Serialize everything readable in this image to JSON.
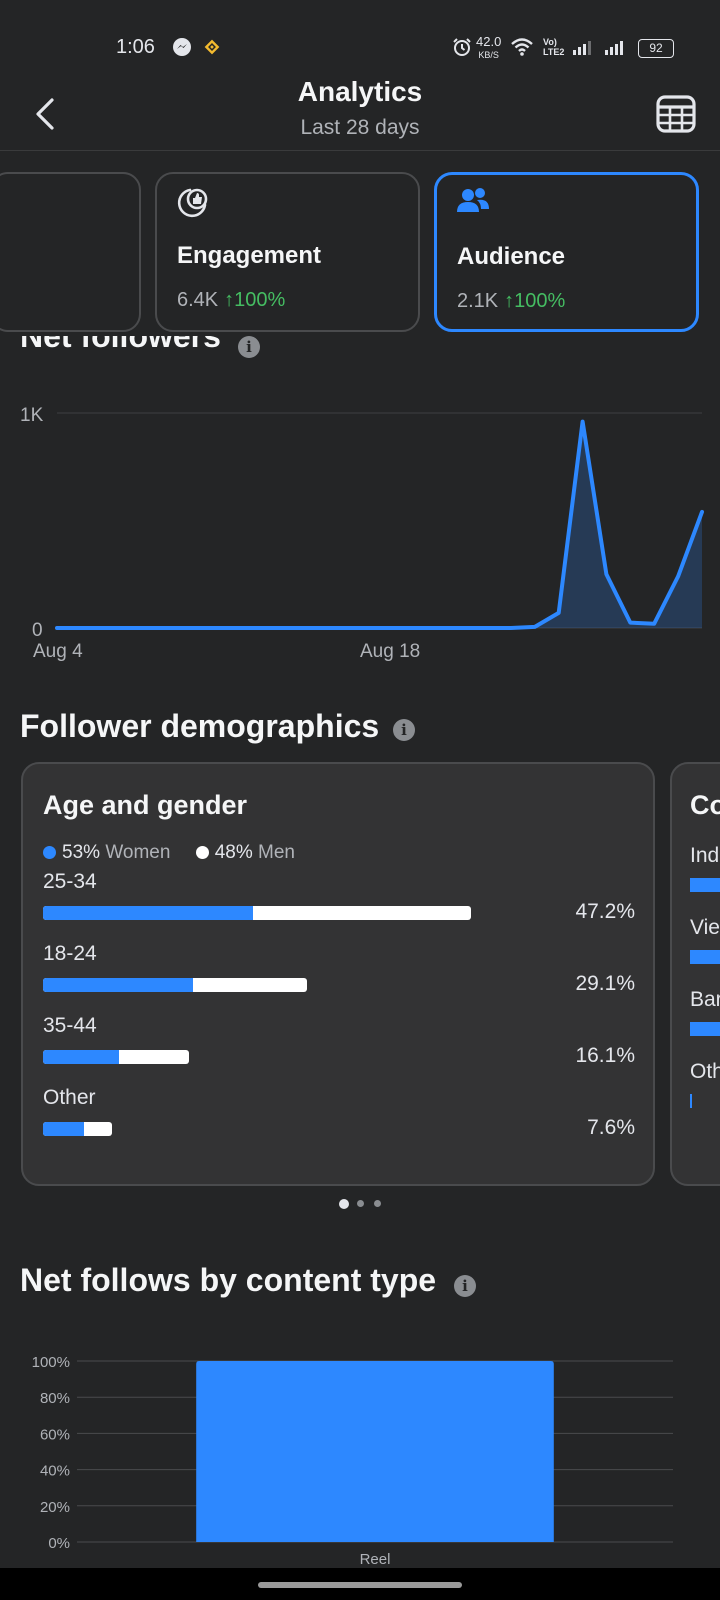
{
  "status_bar": {
    "time": "1:06",
    "net_speed": "42.0",
    "net_unit": "KB/S",
    "volte1": "Vo)",
    "volte2": "LTE2",
    "battery": "92",
    "icons": [
      "messenger-icon",
      "binance-icon",
      "alarm-icon",
      "wifi-icon",
      "signal-icon",
      "battery-icon"
    ]
  },
  "header": {
    "title": "Analytics",
    "subtitle": "Last 28 days"
  },
  "cards": [
    {
      "title": "Engagement",
      "value": "6.4K",
      "change": "↑100%",
      "icon": "engagement-icon"
    },
    {
      "title": "Audience",
      "value": "2.1K",
      "change": "↑100%",
      "icon": "audience-icon",
      "selected": true
    }
  ],
  "net_followers": {
    "title": "Net followers",
    "chart_data": {
      "type": "area",
      "x_tick_labels": [
        "Aug 4",
        "Aug 18"
      ],
      "y_tick_labels": [
        "1K",
        "0"
      ],
      "ylim": [
        0,
        1000
      ],
      "grid": true,
      "series": [
        {
          "color": "#2d88ff",
          "values": [
            0,
            0,
            0,
            0,
            0,
            0,
            0,
            0,
            0,
            0,
            0,
            0,
            0,
            0,
            0,
            0,
            0,
            0,
            0,
            0,
            5,
            70,
            960,
            250,
            25,
            20,
            240,
            540
          ]
        }
      ]
    }
  },
  "demographics": {
    "title": "Follower demographics",
    "age_gender": {
      "title": "Age and gender",
      "women_pct": "53%",
      "women_label": "Women",
      "men_pct": "48%",
      "men_label": "Men",
      "rows": [
        {
          "label": "25-34",
          "pct": "47.2%",
          "total": 47.2,
          "women_share": 0.49
        },
        {
          "label": "18-24",
          "pct": "29.1%",
          "total": 29.1,
          "women_share": 0.57
        },
        {
          "label": "35-44",
          "pct": "16.1%",
          "total": 16.1,
          "women_share": 0.52
        },
        {
          "label": "Other",
          "pct": "7.6%",
          "total": 7.6,
          "women_share": 0.59
        }
      ]
    },
    "next_card": {
      "title": "Co",
      "rows": [
        "Ind",
        "Vie",
        "Bar",
        "Oth"
      ]
    },
    "pager": {
      "count": 3,
      "active": 0
    }
  },
  "content_type": {
    "title": "Net follows by content type",
    "chart_data": {
      "type": "bar",
      "categories": [
        "Reel"
      ],
      "values": [
        100
      ],
      "ylim": [
        0,
        100
      ],
      "y_tick_labels": [
        "100%",
        "80%",
        "60%",
        "40%",
        "20%",
        "0%"
      ],
      "grid": true,
      "color": "#2d88ff"
    }
  }
}
